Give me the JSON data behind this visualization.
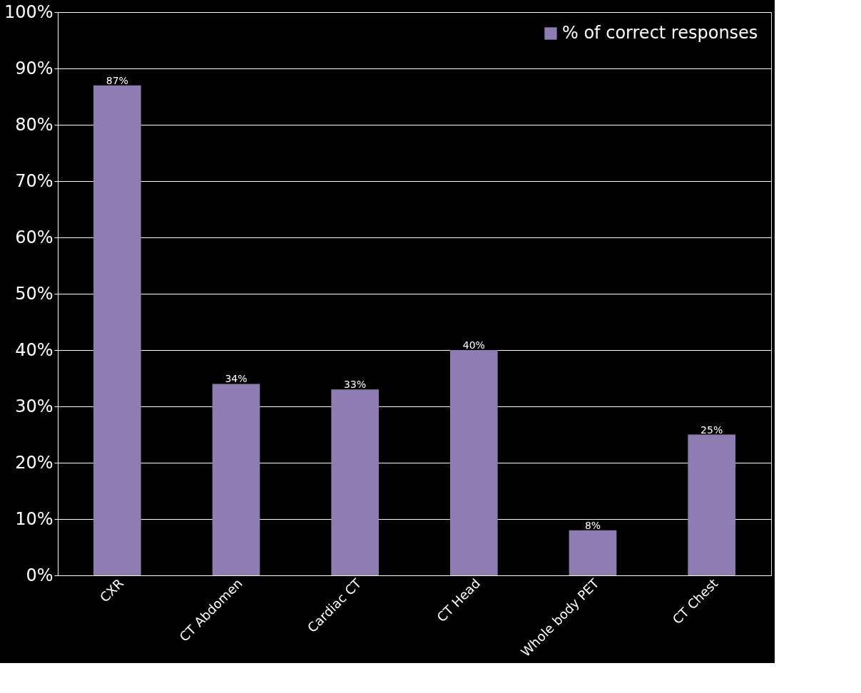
{
  "chart_data": {
    "type": "bar",
    "categories": [
      "CXR",
      "CT Abdomen",
      "Cardiac CT",
      "CT Head",
      "Whole body PET",
      "CT Chest"
    ],
    "series": [
      {
        "name": "% of correct responses",
        "color": "#8e7cb3",
        "values": [
          87,
          34,
          33,
          40,
          8,
          25
        ],
        "value_labels": [
          "87%",
          "34%",
          "33%",
          "40%",
          "8%",
          "25%"
        ]
      }
    ],
    "ylim": [
      0,
      100
    ],
    "yticks": [
      {
        "value": 0,
        "label": "0%"
      },
      {
        "value": 10,
        "label": "10%"
      },
      {
        "value": 20,
        "label": "20%"
      },
      {
        "value": 30,
        "label": "30%"
      },
      {
        "value": 40,
        "label": "40%"
      },
      {
        "value": 50,
        "label": "50%"
      },
      {
        "value": 60,
        "label": "60%"
      },
      {
        "value": 70,
        "label": "70%"
      },
      {
        "value": 80,
        "label": "80%"
      },
      {
        "value": 90,
        "label": "90%"
      },
      {
        "value": 100,
        "label": "100%"
      }
    ],
    "grid": "y",
    "legend": "top right"
  }
}
